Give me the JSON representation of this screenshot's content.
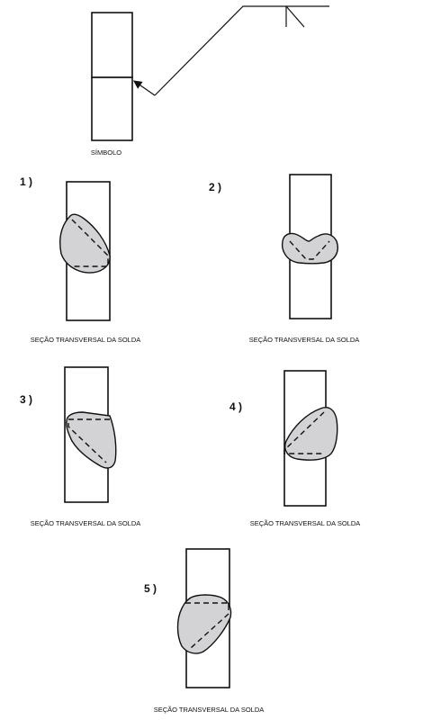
{
  "symbol": {
    "caption": "SÍMBOLO"
  },
  "options": [
    {
      "number": "1 )",
      "caption": "SEÇÃO TRANSVERSAL DA SOLDA"
    },
    {
      "number": "2 )",
      "caption": "SEÇÃO TRANSVERSAL DA SOLDA"
    },
    {
      "number": "3 )",
      "caption": "SEÇÃO TRANSVERSAL DA SOLDA"
    },
    {
      "number": "4 )",
      "caption": "SEÇÃO TRANSVERSAL DA SOLDA"
    },
    {
      "number": "5 )",
      "caption": "SEÇÃO TRANSVERSAL DA SOLDA"
    }
  ]
}
